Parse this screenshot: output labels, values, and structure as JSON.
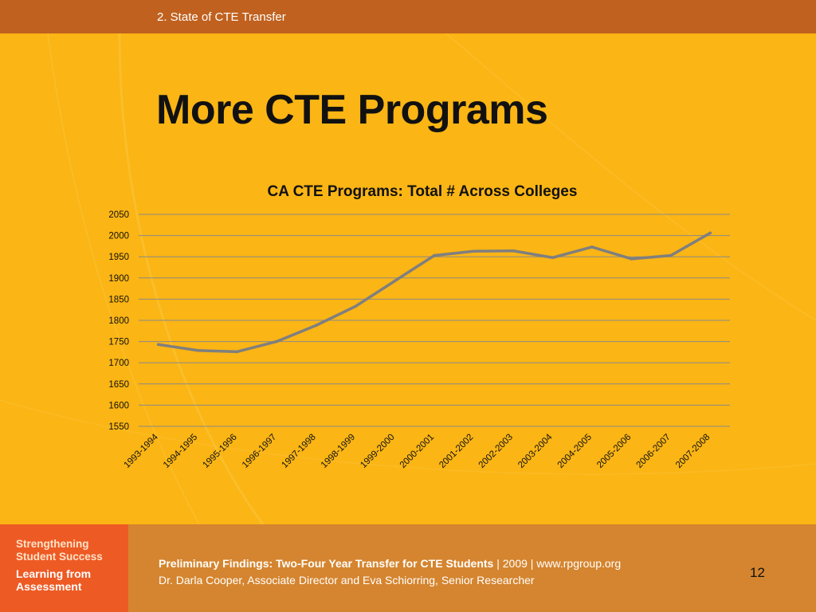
{
  "header": {
    "section_label": "2. State of CTE Transfer"
  },
  "slide": {
    "title": "More CTE Programs"
  },
  "chart_data": {
    "type": "line",
    "title": "CA CTE Programs:  Total # Across Colleges",
    "xlabel": "",
    "ylabel": "",
    "categories": [
      "1993-1994",
      "1994-1995",
      "1995-1996",
      "1996-1997",
      "1997-1998",
      "1998-1999",
      "1999-2000",
      "2000-2001",
      "2001-2002",
      "2002-2003",
      "2003-2004",
      "2004-2005",
      "2005-2006",
      "2006-2007",
      "2007-2008"
    ],
    "series": [
      {
        "values": [
          1743,
          1729,
          1726,
          1750,
          1788,
          1833,
          1893,
          1953,
          1963,
          1964,
          1948,
          1973,
          1945,
          1953,
          2006
        ]
      }
    ],
    "ylim": [
      1550,
      2050
    ],
    "yticks": [
      1550,
      1600,
      1650,
      1700,
      1750,
      1800,
      1850,
      1900,
      1950,
      2000,
      2050
    ],
    "grid": true,
    "legend": "none",
    "line_color": "#7f7f7f",
    "grid_color": "#8a8a8a"
  },
  "footer": {
    "logo_line1": "Strengthening",
    "logo_line2": "Student Success",
    "logo_line3": "Learning from",
    "logo_line4": "Assessment",
    "study_title": "Preliminary Findings: Two-Four Year Transfer for CTE Students",
    "study_meta": "  |  2009  |  www.rpgroup.org",
    "authors": "Dr. Darla Cooper, Associate Director and Eva Schiorring, Senior Researcher",
    "page_number": "12"
  },
  "colors": {
    "background": "#fbb514",
    "top_bar": "#c0611f",
    "footer": "#d5852f",
    "logo_block": "#ee5a24"
  }
}
